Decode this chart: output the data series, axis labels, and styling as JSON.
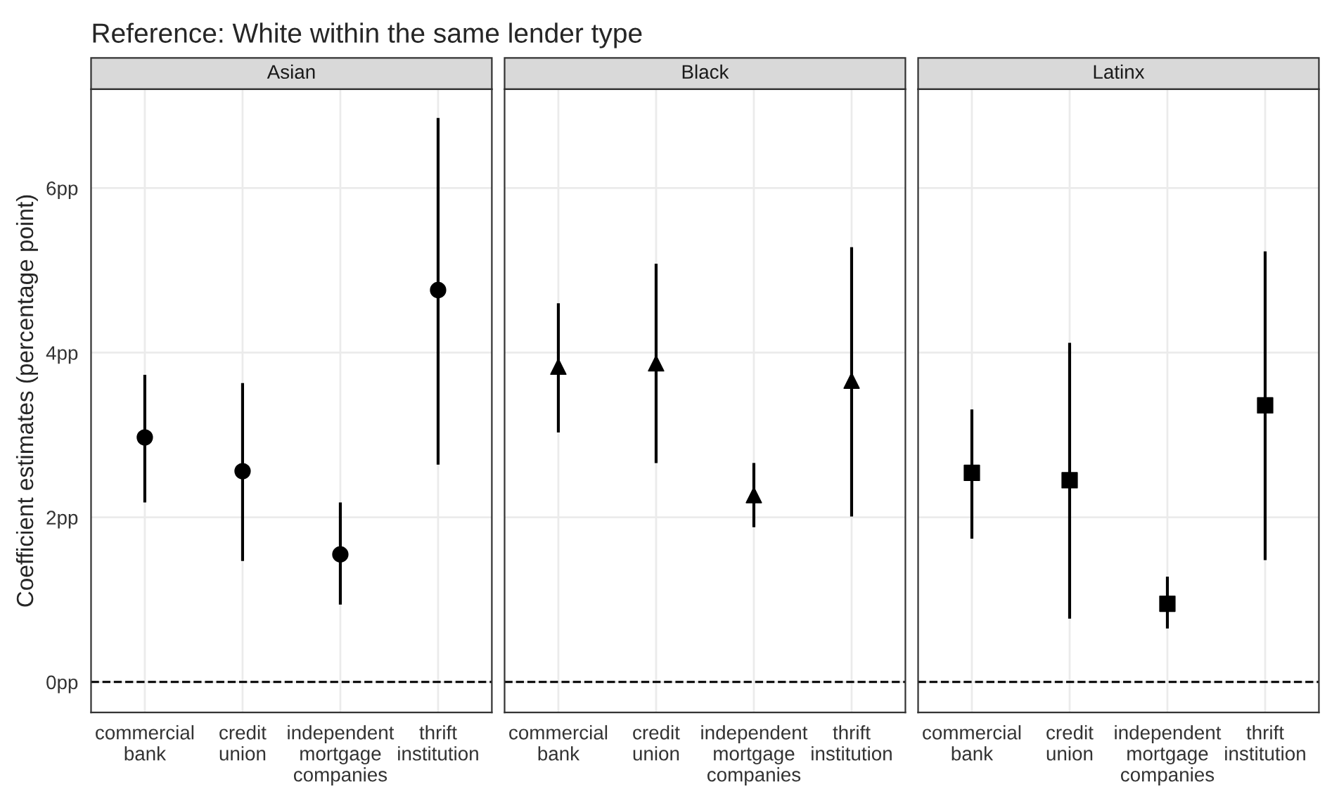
{
  "chart_data": [
    {
      "type": "scatter",
      "title": "Reference: White within the same lender type",
      "subtitle": "Asian",
      "ylabel": "Coefficient estimates (percentage point)",
      "categories": [
        "commercial\nbank",
        "credit\nunion",
        "independent\nmortgage\ncompanies",
        "thrift\ninstitution"
      ],
      "values": [
        2.97,
        2.56,
        1.55,
        4.76
      ],
      "errors": [
        [
          2.18,
          3.73
        ],
        [
          1.47,
          3.63
        ],
        [
          0.94,
          2.18
        ],
        [
          2.64,
          6.85
        ]
      ],
      "color": "#000000",
      "marker": "circle",
      "ylim": [
        -0.37,
        7.2
      ],
      "yticks": [
        {
          "value": 0,
          "label": "0pp"
        },
        {
          "value": 2,
          "label": "2pp"
        },
        {
          "value": 4,
          "label": "4pp"
        },
        {
          "value": 6,
          "label": "6pp"
        }
      ],
      "grid": true,
      "ref_lines": [
        {
          "axis": "y",
          "value": 0,
          "line_style": "dashed",
          "color": "#000000"
        }
      ]
    },
    {
      "type": "scatter",
      "subtitle": "Black",
      "categories": [
        "commercial\nbank",
        "credit\nunion",
        "independent\nmortgage\ncompanies",
        "thrift\ninstitution"
      ],
      "values": [
        3.83,
        3.87,
        2.27,
        3.66
      ],
      "errors": [
        [
          3.03,
          4.6
        ],
        [
          2.66,
          5.08
        ],
        [
          1.88,
          2.66
        ],
        [
          2.01,
          5.28
        ]
      ],
      "color": "#000000",
      "marker": "triangle",
      "ylim": [
        -0.37,
        7.2
      ],
      "yticks": [
        {
          "value": 0,
          "label": null
        },
        {
          "value": 2,
          "label": null
        },
        {
          "value": 4,
          "label": null
        },
        {
          "value": 6,
          "label": null
        }
      ],
      "tick_labels": "x",
      "grid": true,
      "ref_lines": [
        {
          "axis": "y",
          "value": 0,
          "line_style": "dashed",
          "color": "#000000"
        }
      ]
    },
    {
      "type": "scatter",
      "subtitle": "Latinx",
      "categories": [
        "commercial\nbank",
        "credit\nunion",
        "independent\nmortgage\ncompanies",
        "thrift\ninstitution"
      ],
      "values": [
        2.54,
        2.45,
        0.95,
        3.36
      ],
      "errors": [
        [
          1.74,
          3.31
        ],
        [
          0.77,
          4.12
        ],
        [
          0.65,
          1.28
        ],
        [
          1.48,
          5.23
        ]
      ],
      "color": "#000000",
      "marker": "square",
      "ylim": [
        -0.37,
        7.2
      ],
      "yticks": [
        {
          "value": 0,
          "label": null
        },
        {
          "value": 2,
          "label": null
        },
        {
          "value": 4,
          "label": null
        },
        {
          "value": 6,
          "label": null
        }
      ],
      "tick_labels": "x",
      "grid": true,
      "ref_lines": [
        {
          "axis": "y",
          "value": 0,
          "line_style": "dashed",
          "color": "#000000"
        }
      ]
    }
  ]
}
